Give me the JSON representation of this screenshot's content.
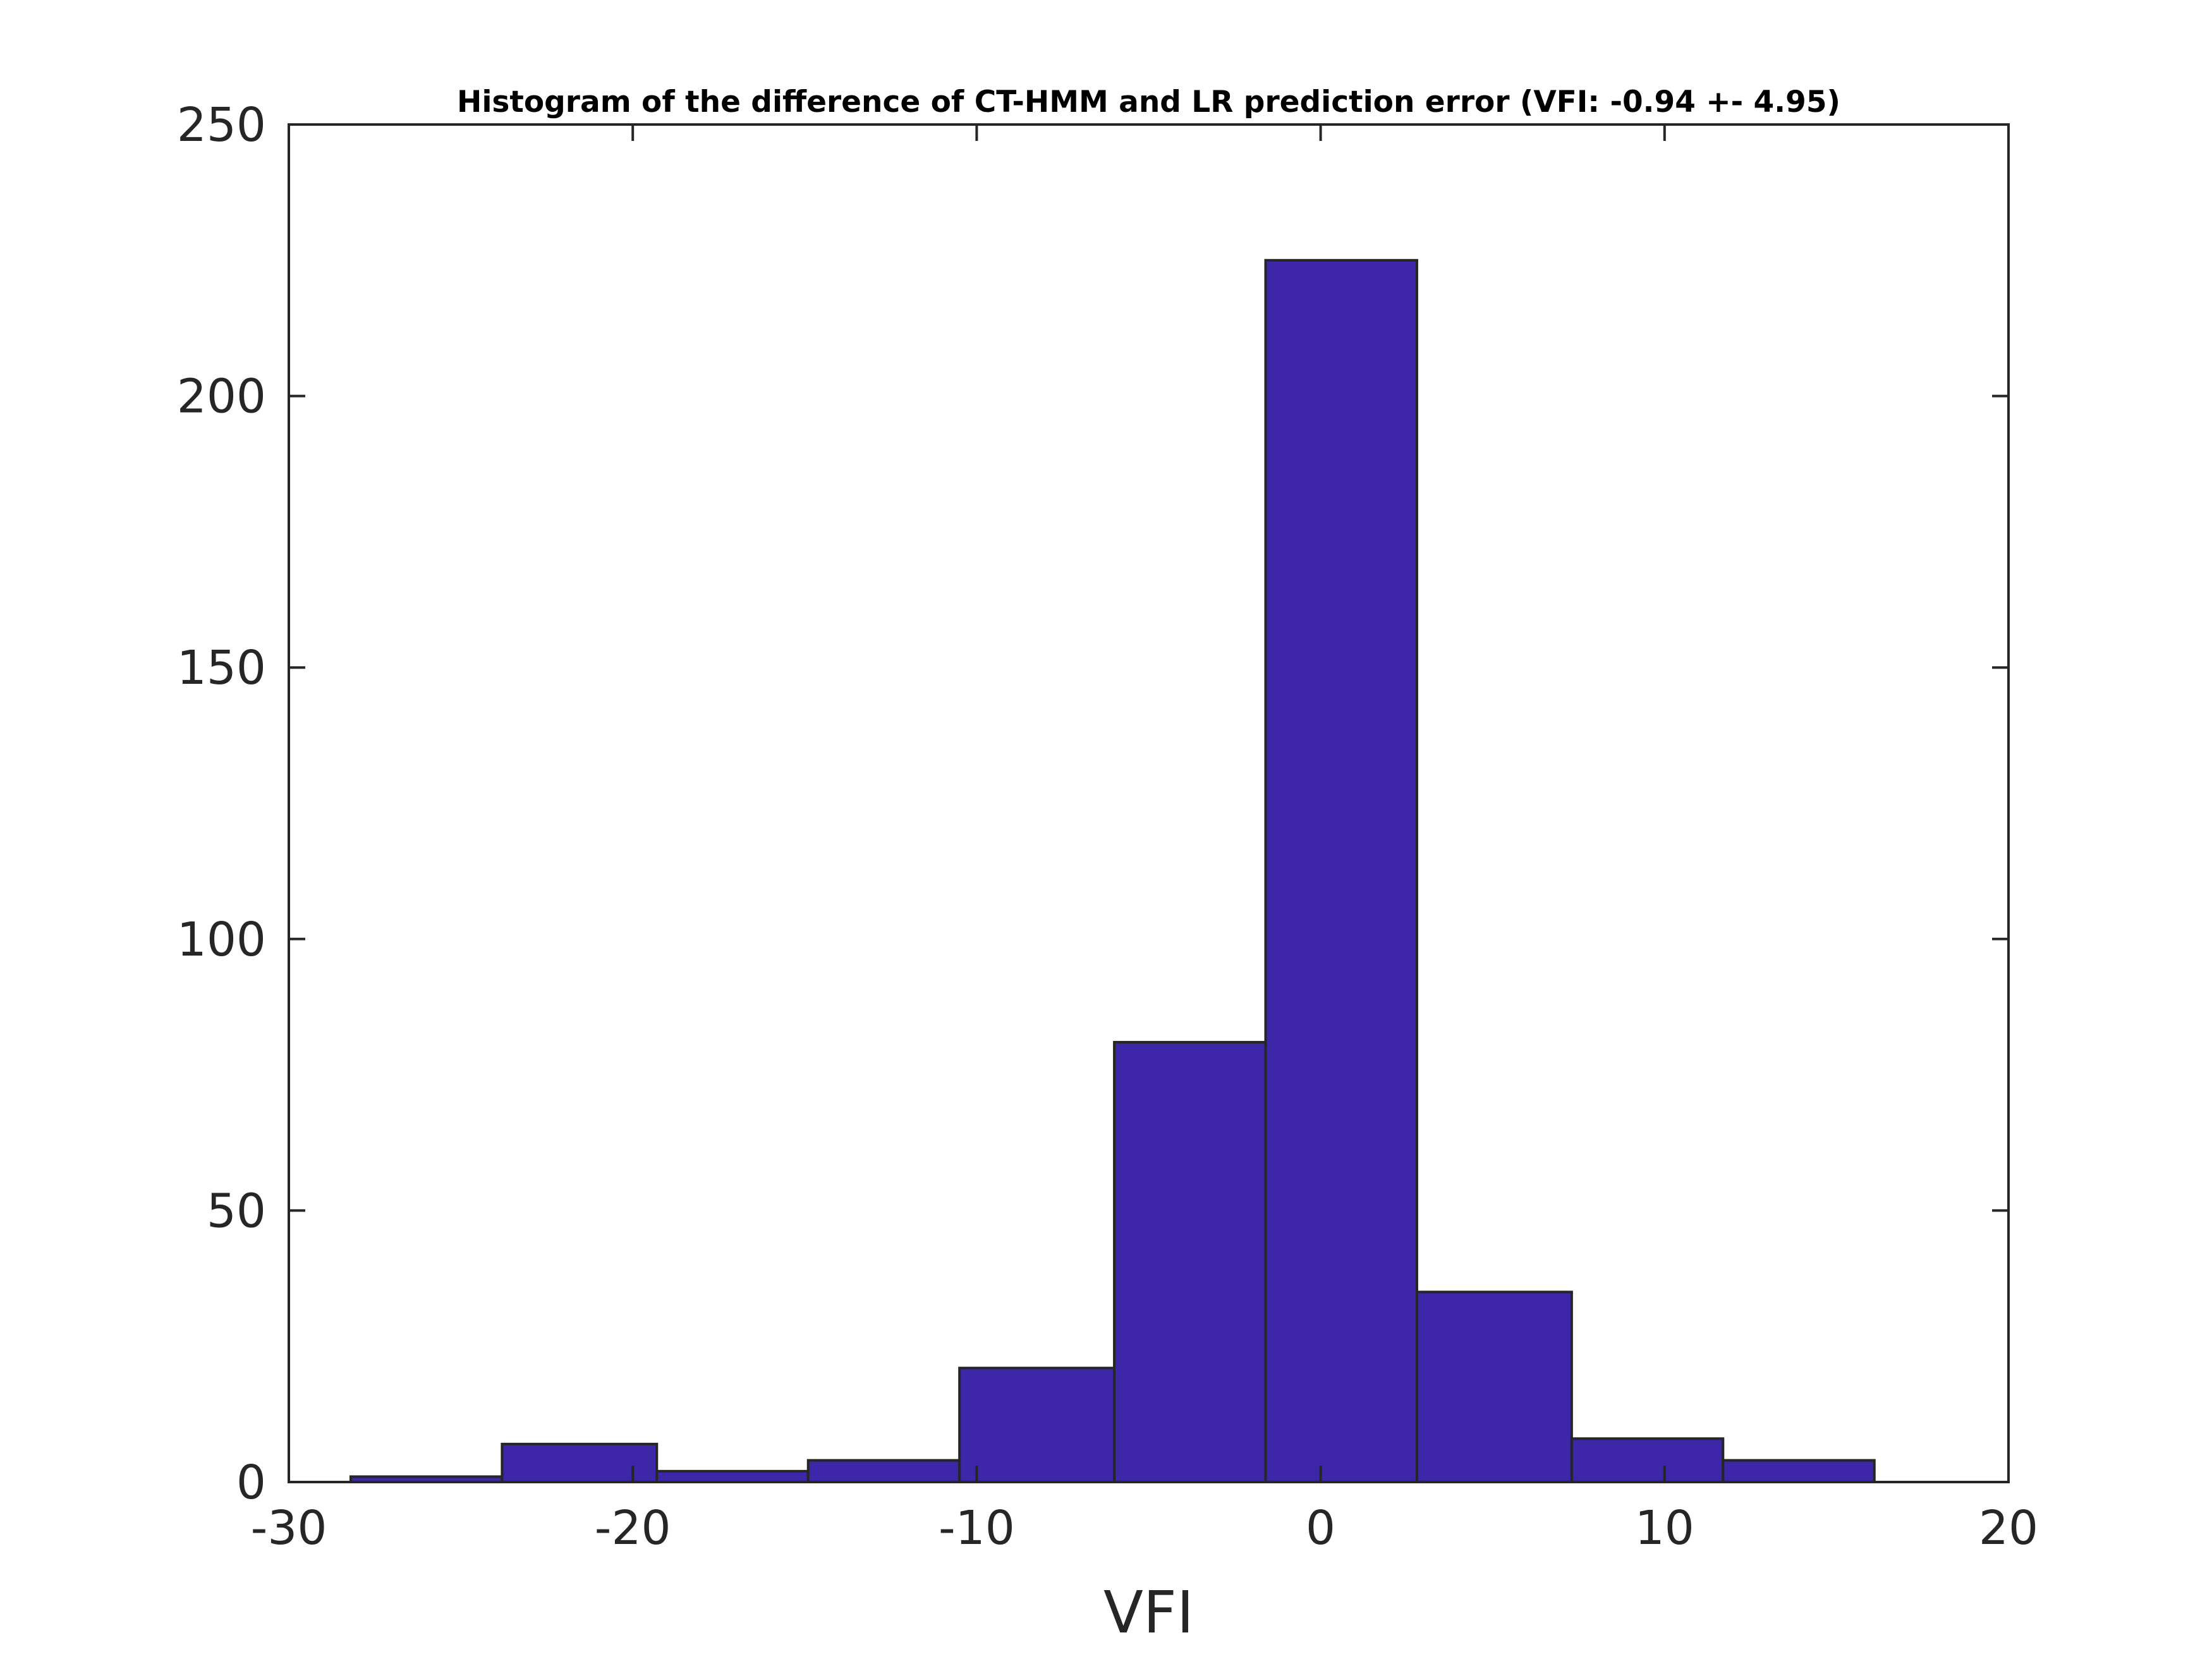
{
  "chart_data": {
    "type": "bar",
    "title": "Histogram of the difference of CT-HMM and LR prediction error (VFI: -0.94 +- 4.95)",
    "xlabel": "VFI",
    "ylabel": "",
    "xlim": [
      -30,
      20
    ],
    "ylim": [
      0,
      250
    ],
    "xticks": [
      -30,
      -20,
      -10,
      0,
      10,
      20
    ],
    "yticks": [
      0,
      50,
      100,
      150,
      200,
      250
    ],
    "bin_edges": [
      -28.2,
      -23.8,
      -19.3,
      -14.9,
      -10.5,
      -6.0,
      -1.6,
      2.8,
      7.3,
      11.7,
      16.1
    ],
    "values": [
      1,
      7,
      2,
      4,
      21,
      81,
      225,
      35,
      8,
      4
    ],
    "bar_color": "#3d26a8",
    "edge_color": "#262626",
    "grid": false
  }
}
